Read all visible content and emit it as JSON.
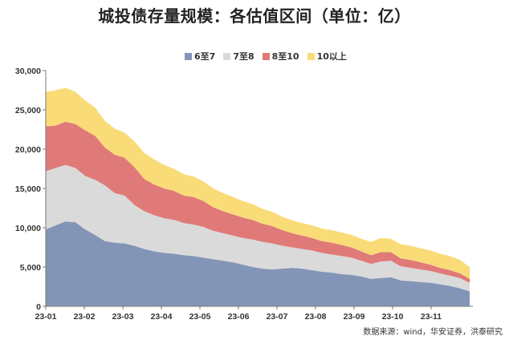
{
  "title": "城投债存量规模：各估值区间（单位：亿）",
  "source": "数据来源：wind，华安证券，洪泰研究",
  "chart_data": {
    "type": "area",
    "stacked": true,
    "title": "城投债存量规模：各估值区间（单位：亿）",
    "xlabel": "",
    "ylabel": "",
    "ylim": [
      0,
      30000
    ],
    "yticks": [
      "0",
      "5,000",
      "10,000",
      "15,000",
      "20,000",
      "25,000",
      "30,000"
    ],
    "ytick_values": [
      0,
      5000,
      10000,
      15000,
      20000,
      25000,
      30000
    ],
    "xticks": [
      "23-01",
      "23-02",
      "23-03",
      "23-04",
      "23-05",
      "23-06",
      "23-07",
      "23-08",
      "23-09",
      "23-10",
      "23-11"
    ],
    "grid": false,
    "legend_position": "top",
    "x_count": 44,
    "series": [
      {
        "name": "6至7",
        "color": "#8395b7",
        "values": [
          9800,
          10300,
          10800,
          10700,
          9800,
          9100,
          8300,
          8100,
          8000,
          7700,
          7300,
          7000,
          6800,
          6700,
          6500,
          6400,
          6200,
          6000,
          5800,
          5600,
          5300,
          5000,
          4800,
          4700,
          4800,
          4900,
          4800,
          4600,
          4400,
          4300,
          4100,
          4000,
          3800,
          3500,
          3600,
          3700,
          3300,
          3200,
          3100,
          3000,
          2800,
          2600,
          2300,
          1900
        ]
      },
      {
        "name": "7至8",
        "color": "#dadada",
        "values": [
          7400,
          7300,
          7200,
          6900,
          6800,
          7000,
          7100,
          6300,
          6100,
          5200,
          4800,
          4600,
          4400,
          4300,
          4100,
          4000,
          3900,
          3600,
          3500,
          3400,
          3400,
          3500,
          3400,
          3300,
          2900,
          2600,
          2500,
          2500,
          2400,
          2300,
          2300,
          2200,
          2000,
          1900,
          2100,
          2100,
          1800,
          1700,
          1600,
          1500,
          1400,
          1300,
          1300,
          1100
        ]
      },
      {
        "name": "8至10",
        "color": "#e07a78",
        "values": [
          5700,
          5400,
          5500,
          5600,
          5800,
          5600,
          4800,
          4900,
          4800,
          4800,
          4100,
          3900,
          3800,
          3700,
          3500,
          3500,
          3300,
          3000,
          2800,
          2700,
          2600,
          2500,
          2300,
          2200,
          2000,
          1800,
          1700,
          1600,
          1500,
          1500,
          1400,
          1300,
          1200,
          1100,
          1200,
          1100,
          1000,
          1000,
          900,
          800,
          700,
          700,
          600,
          500
        ]
      },
      {
        "name": "10以上",
        "color": "#f9dc78",
        "values": [
          4400,
          4500,
          4300,
          4100,
          3800,
          3600,
          3400,
          3300,
          3200,
          3300,
          3300,
          3200,
          3000,
          2800,
          2700,
          2600,
          2500,
          2400,
          2300,
          2200,
          2100,
          2000,
          1900,
          1800,
          1700,
          1650,
          1600,
          1600,
          1600,
          1600,
          1600,
          1600,
          1600,
          1700,
          1800,
          1700,
          1800,
          1800,
          1800,
          1800,
          1800,
          1800,
          1700,
          1500
        ]
      }
    ]
  }
}
